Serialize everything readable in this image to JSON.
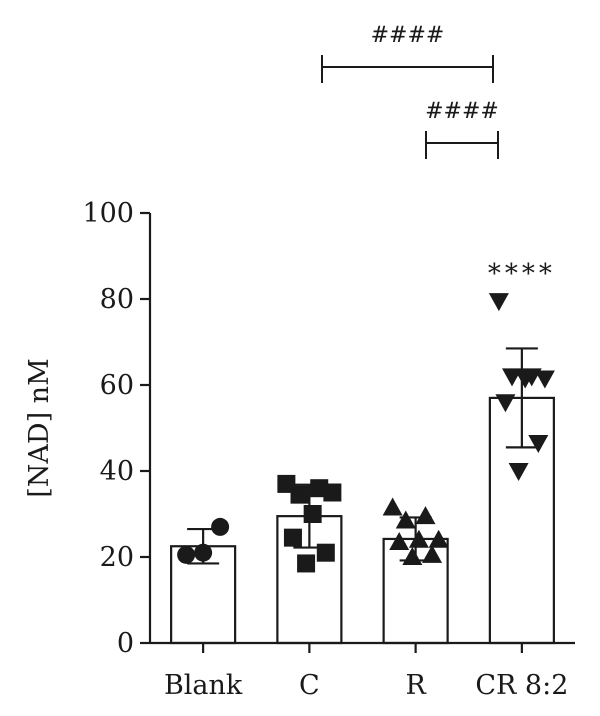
{
  "chart_data": {
    "type": "bar",
    "ylabel": "[NAD] nM",
    "ylim": [
      0,
      100
    ],
    "yticks": [
      0,
      20,
      40,
      60,
      80,
      100
    ],
    "categories": [
      "Blank",
      "C",
      "R",
      "CR 8:2"
    ],
    "bars": [
      {
        "category": "Blank",
        "mean": 22.5,
        "error": 4.0,
        "marker": "circle",
        "points": [
          20.5,
          27.0,
          21.0
        ]
      },
      {
        "category": "C",
        "mean": 29.5,
        "error": 7.3,
        "marker": "square",
        "points": [
          37.0,
          36.0,
          34.5,
          35.0,
          30.0,
          24.5,
          21.0,
          18.5
        ]
      },
      {
        "category": "R",
        "mean": 24.2,
        "error": 5.0,
        "marker": "triangle-up",
        "points": [
          31.5,
          29.5,
          28.5,
          24.0,
          24.0,
          23.5,
          20.5,
          20.0
        ]
      },
      {
        "category": "CR 8:2",
        "mean": 57.0,
        "error": 11.5,
        "marker": "triangle-down",
        "points": [
          79.5,
          62.0,
          62.0,
          61.5,
          61.5,
          56.0,
          46.5,
          40.0
        ]
      }
    ],
    "annotations": {
      "stars": {
        "category": "CR 8:2",
        "text": "****"
      },
      "brackets": [
        {
          "from": "C",
          "to": "CR 8:2",
          "text": "####"
        },
        {
          "from": "R",
          "to": "CR 8:2",
          "text": "####"
        }
      ]
    },
    "colors": {
      "bar_fill": "#ffffff",
      "stroke": "#1a1a1a",
      "marker": "#1a1a1a"
    }
  }
}
